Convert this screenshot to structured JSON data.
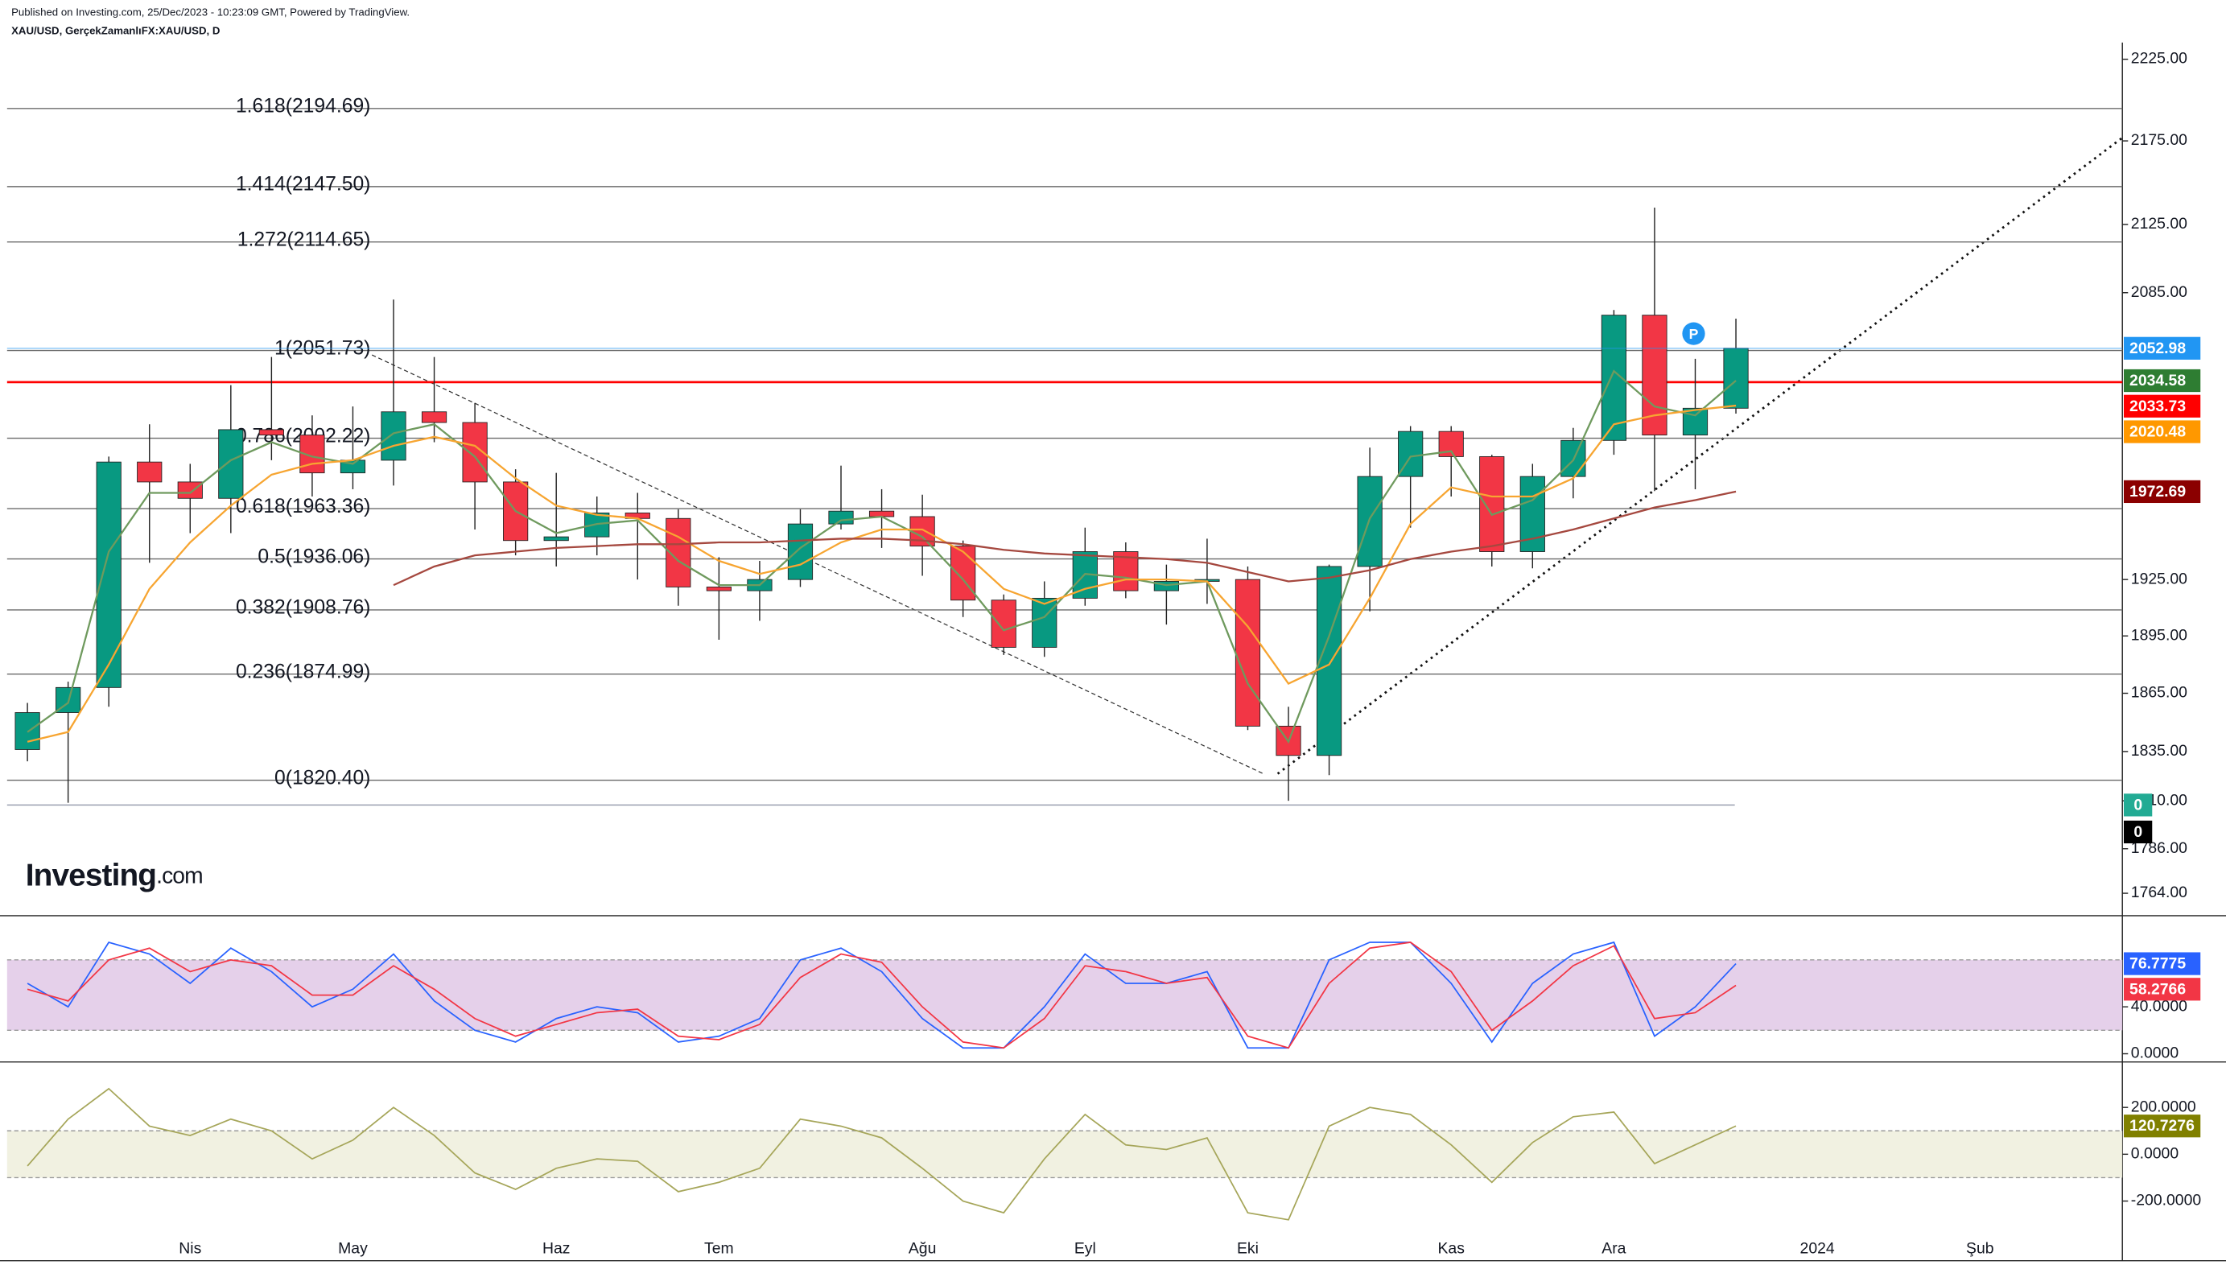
{
  "chart_data": [
    {
      "type": "candlestick",
      "source_note": "Published on Investing.com, 25/Dec/2023 - 10:23:09 GMT, Powered by TradingView.",
      "symbol": "XAU/USD, GerçekZamanlıFX:XAU/USD, D",
      "logo_text": "Investing",
      "logo_suffix": ".com",
      "marker_label": "P",
      "categories": [
        null,
        null,
        null,
        null,
        "Nis",
        null,
        null,
        null,
        "May",
        null,
        null,
        null,
        null,
        "Haz",
        null,
        null,
        null,
        "Tem",
        null,
        null,
        null,
        null,
        "Ağu",
        null,
        null,
        null,
        "Eyl",
        null,
        null,
        null,
        "Eki",
        null,
        null,
        null,
        null,
        "Kas",
        null,
        null,
        null,
        "Ara",
        null,
        null,
        null,
        null,
        "2024",
        null,
        null,
        null,
        "Şub",
        null,
        null,
        null
      ],
      "open": [
        1836,
        1855,
        1868,
        1989,
        1978,
        1969,
        2007,
        2004,
        1983,
        1990,
        2017,
        2011,
        1978,
        1946,
        1948,
        1961,
        1958,
        1921,
        1919,
        1925,
        1955,
        1962,
        1959,
        1943,
        1914,
        1889,
        1915,
        1940,
        1919,
        1924,
        1925,
        1848,
        1833,
        1932,
        1981,
        2006,
        1992,
        1940,
        1981,
        2001,
        2072,
        2004,
        2019,
        null,
        null,
        null,
        null,
        null,
        null,
        null,
        null,
        null
      ],
      "high": [
        1860,
        1871,
        1992,
        2010,
        1988,
        2032,
        2048,
        2015,
        2020,
        2081,
        2048,
        2022,
        1985,
        1983,
        1970,
        1972,
        1963,
        1937,
        1935,
        1963,
        1987,
        1974,
        1971,
        1946,
        1917,
        1924,
        1953,
        1945,
        1933,
        1947,
        1932,
        1858,
        1933,
        1997,
        2009,
        2009,
        1993,
        1988,
        2008,
        2075,
        2135,
        2047,
        2070,
        null,
        null,
        null,
        null,
        null,
        null,
        null,
        null,
        null
      ],
      "low": [
        1830,
        1809,
        1858,
        1934,
        1950,
        1950,
        1990,
        1970,
        1974,
        1976,
        2000,
        1952,
        1938,
        1932,
        1938,
        1925,
        1911,
        1893,
        1903,
        1921,
        1952,
        1942,
        1927,
        1905,
        1885,
        1884,
        1911,
        1915,
        1901,
        1912,
        1846,
        1810,
        1823,
        1908,
        1953,
        1970,
        1932,
        1931,
        1969,
        1993,
        1973,
        1974,
        2016,
        null,
        null,
        null,
        null,
        null,
        null,
        null,
        null,
        null
      ],
      "close": [
        1855,
        1868,
        1989,
        1978,
        1969,
        2007,
        2004,
        1983,
        1990,
        2017,
        2011,
        1978,
        1946,
        1948,
        1961,
        1958,
        1921,
        1919,
        1925,
        1955,
        1962,
        1959,
        1943,
        1914,
        1889,
        1915,
        1940,
        1919,
        1924,
        1925,
        1848,
        1833,
        1932,
        1981,
        2006,
        1992,
        1940,
        1981,
        2001,
        2072,
        2004,
        2019,
        2052.98,
        null,
        null,
        null,
        null,
        null,
        null,
        null,
        null,
        null
      ],
      "up_color": "#089981",
      "down_color": "#f23645",
      "last_color": "#2196f3",
      "overlays": [
        {
          "color": "#6f9a5e",
          "badge_color": "#2e7d32",
          "values": [
            1845,
            1860,
            1940,
            1972,
            1972,
            1990,
            2000,
            1992,
            1988,
            2005,
            2010,
            1992,
            1962,
            1950,
            1955,
            1957,
            1935,
            1922,
            1922,
            1942,
            1957,
            1959,
            1948,
            1925,
            1898,
            1905,
            1928,
            1926,
            1922,
            1924,
            1870,
            1840,
            1895,
            1958,
            1992,
            1995,
            1960,
            1968,
            1990,
            2040,
            2020,
            2015,
            2034.58,
            null,
            null,
            null,
            null,
            null,
            null,
            null,
            null,
            null
          ]
        },
        {
          "color": "#f7a531",
          "badge_color": "#ff9800",
          "values": [
            1840,
            1845,
            1880,
            1920,
            1945,
            1965,
            1982,
            1988,
            1990,
            1998,
            2003,
            1998,
            1980,
            1965,
            1960,
            1958,
            1948,
            1935,
            1928,
            1933,
            1945,
            1952,
            1952,
            1940,
            1920,
            1912,
            1920,
            1925,
            1925,
            1924,
            1900,
            1870,
            1880,
            1915,
            1955,
            1975,
            1970,
            1970,
            1980,
            2010,
            2015,
            2018,
            2020.48,
            null,
            null,
            null,
            null,
            null,
            null,
            null,
            null,
            null
          ]
        },
        {
          "color": "#a5483f",
          "badge_color": "#8b0000",
          "values": [
            null,
            null,
            null,
            null,
            null,
            null,
            null,
            null,
            null,
            1922,
            1932,
            1938,
            1940,
            1942,
            1943,
            1944,
            1944,
            1945,
            1945,
            1946,
            1947,
            1947,
            1946,
            1944,
            1941,
            1939,
            1938,
            1937,
            1936,
            1934,
            1929,
            1924,
            1926,
            1930,
            1936,
            1940,
            1943,
            1947,
            1952,
            1958,
            1964,
            1968,
            1972.69,
            null,
            null,
            null,
            null,
            null,
            null,
            null,
            null,
            null
          ]
        }
      ],
      "hline": {
        "value": 2033.73,
        "color": "#ff0000"
      },
      "levels": [
        {
          "label": "1.618(2194.69)",
          "value": 2194.69
        },
        {
          "label": "1.414(2147.50)",
          "value": 2147.5
        },
        {
          "label": "1.272(2114.65)",
          "value": 2114.65
        },
        {
          "label": "1(2051.73)",
          "value": 2051.73
        },
        {
          "label": "0.786(2002.22)",
          "value": 2002.22
        },
        {
          "label": "0.618(1963.36)",
          "value": 1963.36
        },
        {
          "label": "0.5(1936.06)",
          "value": 1936.06
        },
        {
          "label": "0.382(1908.76)",
          "value": 1908.76
        },
        {
          "label": "0.236(1874.99)",
          "value": 1874.99
        },
        {
          "label": "0(1820.40)",
          "value": 1820.4
        }
      ],
      "extra_badges": [
        {
          "value": 0,
          "color": "#22ab94"
        },
        {
          "value": 0,
          "color": "#000000"
        }
      ],
      "log_scale": true,
      "grid": false,
      "ylim": [
        1753,
        2262
      ],
      "yticks": [
        {
          "value": 2225,
          "label": "2225.00"
        },
        {
          "value": 2175,
          "label": "2175.00"
        },
        {
          "value": 2125,
          "label": "2125.00"
        },
        {
          "value": 2085,
          "label": "2085.00"
        },
        {
          "value": 1925,
          "label": "1925.00"
        },
        {
          "value": 1895,
          "label": "1895.00"
        },
        {
          "value": 1865,
          "label": "1865.00"
        },
        {
          "value": 1835,
          "label": "1835.00"
        },
        {
          "value": 1810,
          "label": "1810.00"
        },
        {
          "value": 1786,
          "label": "1786.00"
        },
        {
          "value": 1764,
          "label": "1764.00"
        }
      ]
    },
    {
      "type": "line",
      "series": [
        {
          "color": "#2962ff",
          "values": [
            60,
            40,
            95,
            85,
            60,
            90,
            70,
            40,
            55,
            85,
            45,
            20,
            10,
            30,
            40,
            35,
            10,
            15,
            30,
            80,
            90,
            70,
            30,
            5,
            5,
            40,
            85,
            60,
            60,
            70,
            5,
            5,
            80,
            95,
            95,
            60,
            10,
            60,
            85,
            95,
            15,
            40,
            76.7775
          ]
        },
        {
          "color": "#f23645",
          "values": [
            55,
            45,
            80,
            90,
            70,
            80,
            75,
            50,
            50,
            75,
            55,
            30,
            15,
            25,
            35,
            38,
            15,
            12,
            25,
            65,
            85,
            78,
            40,
            10,
            5,
            30,
            75,
            70,
            60,
            65,
            15,
            5,
            60,
            90,
            95,
            70,
            20,
            45,
            75,
            92,
            30,
            35,
            58.2766
          ]
        }
      ],
      "band": [
        20,
        80
      ],
      "band_color": "#e1c8e6",
      "ylim": [
        -7,
        114
      ],
      "yticks": [
        {
          "value": 40,
          "label": "40.0000"
        },
        {
          "value": 0,
          "label": "0.0000"
        }
      ]
    },
    {
      "type": "line",
      "series": [
        {
          "color": "#a6a65a",
          "badge_color": "#808000",
          "values": [
            -50,
            150,
            280,
            120,
            80,
            150,
            100,
            -20,
            60,
            200,
            80,
            -80,
            -150,
            -60,
            -20,
            -30,
            -160,
            -120,
            -60,
            150,
            120,
            70,
            -60,
            -200,
            -250,
            -20,
            170,
            40,
            20,
            70,
            -250,
            -280,
            120,
            200,
            170,
            40,
            -120,
            50,
            160,
            180,
            -40,
            40,
            120.7276
          ]
        }
      ],
      "band": [
        -100,
        100
      ],
      "band_color": "#efefdc",
      "ylim": [
        -455,
        382
      ],
      "yticks": [
        {
          "value": 200,
          "label": "200.0000"
        },
        {
          "value": 0,
          "label": "0.0000"
        },
        {
          "value": -200,
          "label": "-200.0000"
        }
      ]
    }
  ]
}
